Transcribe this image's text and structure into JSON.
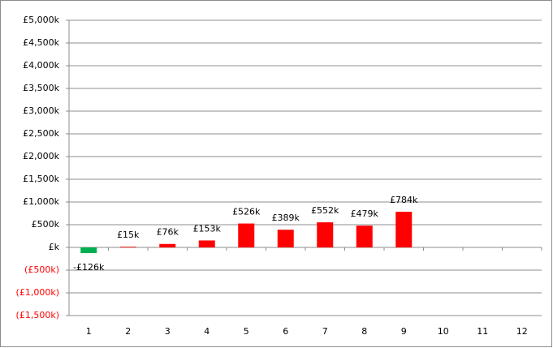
{
  "chart_data": {
    "type": "bar",
    "categories": [
      "1",
      "2",
      "3",
      "4",
      "5",
      "6",
      "7",
      "8",
      "9",
      "10",
      "11",
      "12"
    ],
    "values": [
      -126,
      15,
      76,
      153,
      526,
      389,
      552,
      479,
      784,
      null,
      null,
      null
    ],
    "value_labels": [
      "-£126k",
      "£15k",
      "£76k",
      "£153k",
      "£526k",
      "£389k",
      "£552k",
      "£479k",
      "£784k",
      null,
      null,
      null
    ],
    "positive_color": "#ff0000",
    "negative_color": "#00b050",
    "negative_label_color": "#ff0000",
    "ylim": [
      -1500,
      5000
    ],
    "yticks": [
      {
        "value": -1500,
        "label": "(£1,500k)"
      },
      {
        "value": -1000,
        "label": "(£1,000k)"
      },
      {
        "value": -500,
        "label": "(£500k)"
      },
      {
        "value": 0,
        "label": "£k"
      },
      {
        "value": 500,
        "label": "£500k"
      },
      {
        "value": 1000,
        "label": "£1,000k"
      },
      {
        "value": 1500,
        "label": "£1,500k"
      },
      {
        "value": 2000,
        "label": "£2,000k"
      },
      {
        "value": 2500,
        "label": "£2,500k"
      },
      {
        "value": 3000,
        "label": "£3,000k"
      },
      {
        "value": 3500,
        "label": "£3,500k"
      },
      {
        "value": 4000,
        "label": "£4,000k"
      },
      {
        "value": 4500,
        "label": "£4,500k"
      },
      {
        "value": 5000,
        "label": "£5,000k"
      }
    ],
    "grid": true
  }
}
